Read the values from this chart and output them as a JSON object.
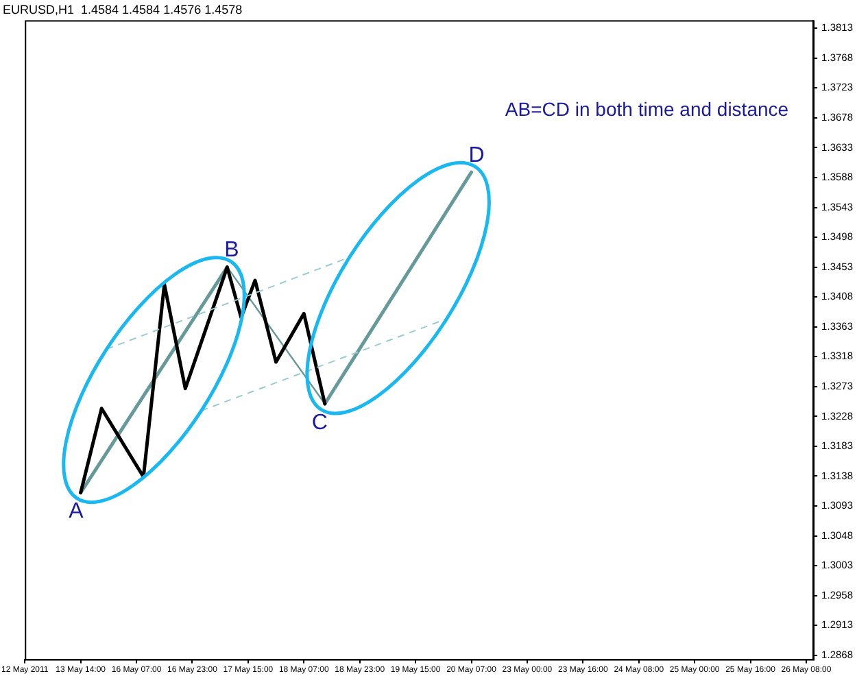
{
  "chart_data": {
    "type": "line",
    "title": "EURUSD,H1  1.4584 1.4584 1.4576 1.4578",
    "annotations": [
      {
        "text": "A",
        "y": 1.3113
      },
      {
        "text": "B",
        "y": 1.3453
      },
      {
        "text": "C",
        "y": 1.3247
      },
      {
        "text": "D",
        "y": 1.3596
      },
      "AB=CD in both time and distance"
    ],
    "categories": [
      "12 May 2011",
      null,
      null,
      null,
      null,
      null,
      null,
      null,
      "13 May 14:00",
      null,
      null,
      null,
      null,
      null,
      null,
      null,
      "16 May 07:00",
      null,
      null,
      null,
      null,
      null,
      null,
      null,
      "16 May 23:00",
      null,
      null,
      null,
      null,
      null,
      null,
      null,
      "17 May 15:00",
      null,
      null,
      null,
      null,
      null,
      null,
      null,
      "18 May 07:00",
      null,
      null,
      null,
      null,
      null,
      null,
      null,
      "18 May 23:00",
      null,
      null,
      null,
      null,
      null,
      null,
      null,
      "19 May 15:00",
      null,
      null,
      null,
      null,
      null,
      null,
      null,
      "20 May 07:00",
      null,
      null,
      null,
      null,
      null,
      null,
      null,
      "23 May 00:00",
      null,
      null,
      null,
      null,
      null,
      null,
      null,
      "23 May 16:00",
      null,
      null,
      null,
      null,
      null,
      null,
      null,
      "24 May 08:00",
      null,
      null,
      null,
      null,
      null,
      null,
      null,
      "25 May 00:00",
      null,
      null,
      null,
      null,
      null,
      null,
      null,
      "25 May 16:00",
      null,
      null,
      null,
      null,
      null,
      null,
      null,
      "26 May 08:00",
      null
    ],
    "series": [
      {
        "color": "#000000",
        "values": [
          null,
          null,
          null,
          null,
          null,
          null,
          null,
          null,
          1.3113,
          null,
          null,
          1.324,
          null,
          null,
          null,
          null,
          null,
          1.3137,
          null,
          null,
          1.3427,
          null,
          null,
          1.327,
          null,
          null,
          null,
          null,
          null,
          1.3453,
          null,
          1.3377,
          null,
          1.3433,
          null,
          null,
          1.331,
          null,
          null,
          null,
          1.3383,
          null,
          null,
          1.3247,
          null,
          null,
          null,
          null,
          null,
          null,
          null,
          null,
          null,
          null,
          null,
          null,
          null,
          null,
          null,
          null,
          null,
          null,
          null,
          null,
          null,
          null,
          null,
          null,
          null,
          null,
          null,
          null,
          null,
          null,
          null,
          null,
          null,
          null,
          null,
          null,
          null,
          null,
          null,
          null,
          null,
          null,
          null,
          null,
          null,
          null,
          null,
          null,
          null,
          null,
          null,
          null,
          null,
          null,
          null,
          null,
          null,
          null,
          null,
          null,
          null,
          null,
          null,
          null,
          null,
          null,
          null,
          null,
          null,
          null
        ]
      },
      {
        "color": "#669999",
        "values": [
          null,
          null,
          null,
          null,
          null,
          null,
          null,
          null,
          1.3113,
          null,
          null,
          null,
          null,
          null,
          null,
          null,
          null,
          null,
          null,
          null,
          null,
          null,
          null,
          null,
          null,
          null,
          null,
          null,
          null,
          1.3453,
          null,
          null,
          null,
          null,
          null,
          null,
          null,
          null,
          null,
          null,
          null,
          null,
          null,
          null,
          null,
          null,
          null,
          null,
          null,
          null,
          null,
          null,
          null,
          null,
          null,
          null,
          null,
          null,
          null,
          null,
          null,
          null,
          null,
          null,
          null,
          null,
          null,
          null,
          null,
          null,
          null,
          null,
          null,
          null,
          null,
          null,
          null,
          null,
          null,
          null,
          null,
          null,
          null,
          null,
          null,
          null,
          null,
          null,
          null,
          null,
          null,
          null,
          null,
          null,
          null,
          null,
          null,
          null,
          null,
          null,
          null,
          null,
          null,
          null,
          null,
          null,
          null,
          null,
          null,
          null,
          null,
          null,
          null,
          null
        ]
      },
      {
        "color": "#669999",
        "values": [
          null,
          null,
          null,
          null,
          null,
          null,
          null,
          null,
          null,
          null,
          null,
          null,
          null,
          null,
          null,
          null,
          null,
          null,
          null,
          null,
          null,
          null,
          null,
          null,
          null,
          null,
          null,
          null,
          null,
          1.3453,
          null,
          null,
          null,
          null,
          null,
          null,
          null,
          null,
          null,
          null,
          null,
          null,
          null,
          1.3247,
          null,
          null,
          null,
          null,
          null,
          null,
          null,
          null,
          null,
          null,
          null,
          null,
          null,
          null,
          null,
          null,
          null,
          null,
          null,
          null,
          null,
          null,
          null,
          null,
          null,
          null,
          null,
          null,
          null,
          null,
          null,
          null,
          null,
          null,
          null,
          null,
          null,
          null,
          null,
          null,
          null,
          null,
          null,
          null,
          null,
          null,
          null,
          null,
          null,
          null,
          null,
          null,
          null,
          null,
          null,
          null,
          null,
          null,
          null,
          null,
          null,
          null,
          null,
          null,
          null,
          null,
          null,
          null,
          null,
          null
        ]
      },
      {
        "color": "#669999",
        "values": [
          null,
          null,
          null,
          null,
          null,
          null,
          null,
          null,
          null,
          null,
          null,
          null,
          null,
          null,
          null,
          null,
          null,
          null,
          null,
          null,
          null,
          null,
          null,
          null,
          null,
          null,
          null,
          null,
          null,
          null,
          null,
          null,
          null,
          null,
          null,
          null,
          null,
          null,
          null,
          null,
          null,
          null,
          null,
          1.3247,
          null,
          null,
          null,
          null,
          null,
          null,
          null,
          null,
          null,
          null,
          null,
          null,
          null,
          null,
          null,
          null,
          null,
          null,
          null,
          null,
          1.3596,
          null,
          null,
          null,
          null,
          null,
          null,
          null,
          null,
          null,
          null,
          null,
          null,
          null,
          null,
          null,
          null,
          null,
          null,
          null,
          null,
          null,
          null,
          null,
          null,
          null,
          null,
          null,
          null,
          null,
          null,
          null,
          null,
          null,
          null,
          null,
          null,
          null,
          null,
          null,
          null,
          null,
          null,
          null,
          null,
          null,
          null,
          null,
          null,
          null
        ]
      }
    ],
    "ylim": [
      1.2862,
      1.3825
    ],
    "yticks": [
      1.2868,
      1.2913,
      1.2958,
      1.3003,
      1.3048,
      1.3093,
      1.3138,
      1.3183,
      1.3228,
      1.3273,
      1.3318,
      1.3363,
      1.3408,
      1.3453,
      1.3498,
      1.3543,
      1.3588,
      1.3633,
      1.3678,
      1.3723,
      1.3768,
      1.3813
    ],
    "grid": false,
    "legend": false,
    "marker": "none",
    "line_style": "solid"
  }
}
